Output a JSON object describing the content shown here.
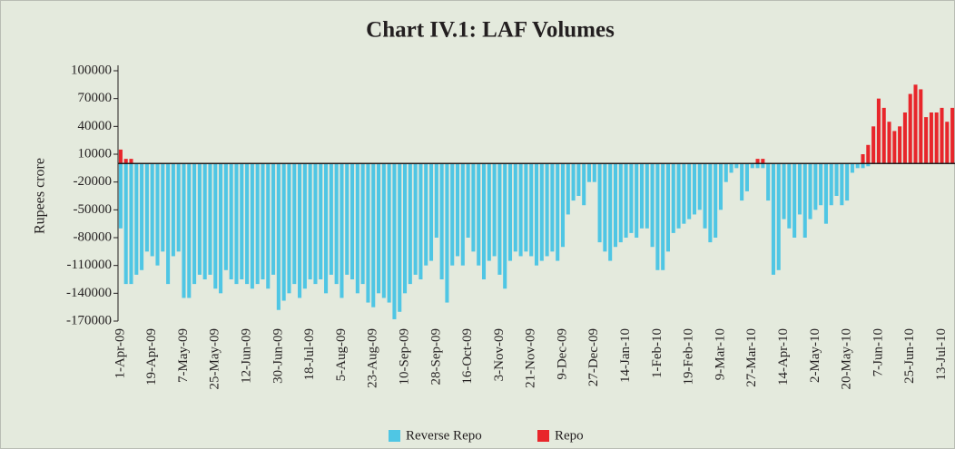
{
  "chart_data": {
    "type": "bar",
    "title": "Chart IV.1: LAF Volumes",
    "y_label": "Rupees crore",
    "categories": [
      "1-Apr-09",
      null,
      null,
      null,
      null,
      null,
      "19-Apr-09",
      null,
      null,
      null,
      null,
      null,
      "7-May-09",
      null,
      null,
      null,
      null,
      null,
      "25-May-09",
      null,
      null,
      null,
      null,
      null,
      "12-Jun-09",
      null,
      null,
      null,
      null,
      null,
      "30-Jun-09",
      null,
      null,
      null,
      null,
      null,
      "18-Jul-09",
      null,
      null,
      null,
      null,
      null,
      "5-Aug-09",
      null,
      null,
      null,
      null,
      null,
      "23-Aug-09",
      null,
      null,
      null,
      null,
      null,
      "10-Sep-09",
      null,
      null,
      null,
      null,
      null,
      "28-Sep-09",
      null,
      null,
      null,
      null,
      null,
      "16-Oct-09",
      null,
      null,
      null,
      null,
      null,
      "3-Nov-09",
      null,
      null,
      null,
      null,
      null,
      "21-Nov-09",
      null,
      null,
      null,
      null,
      null,
      "9-Dec-09",
      null,
      null,
      null,
      null,
      null,
      "27-Dec-09",
      null,
      null,
      null,
      null,
      null,
      "14-Jan-10",
      null,
      null,
      null,
      null,
      null,
      "1-Feb-10",
      null,
      null,
      null,
      null,
      null,
      "19-Feb-10",
      null,
      null,
      null,
      null,
      null,
      "9-Mar-10",
      null,
      null,
      null,
      null,
      null,
      "27-Mar-10",
      null,
      null,
      null,
      null,
      null,
      "14-Apr-10",
      null,
      null,
      null,
      null,
      null,
      "2-May-10",
      null,
      null,
      null,
      null,
      null,
      "20-May-10",
      null,
      null,
      null,
      null,
      null,
      "7-Jun-10",
      null,
      null,
      null,
      null,
      null,
      "25-Jun-10",
      null,
      null,
      null,
      null,
      null,
      "13-Jul-10",
      null,
      null
    ],
    "series": [
      {
        "name": "Reverse Repo",
        "color": "#4fc6e4",
        "values": [
          -70000,
          -130000,
          -130000,
          -120000,
          -115000,
          -95000,
          -100000,
          -110000,
          -95000,
          -130000,
          -100000,
          -95000,
          -145000,
          -145000,
          -130000,
          -120000,
          -125000,
          -120000,
          -135000,
          -140000,
          -115000,
          -125000,
          -130000,
          -125000,
          -130000,
          -135000,
          -130000,
          -125000,
          -135000,
          -120000,
          -158000,
          -148000,
          -140000,
          -130000,
          -145000,
          -135000,
          -125000,
          -130000,
          -125000,
          -140000,
          -120000,
          -130000,
          -145000,
          -120000,
          -125000,
          -140000,
          -130000,
          -150000,
          -155000,
          -140000,
          -145000,
          -150000,
          -168000,
          -160000,
          -140000,
          -130000,
          -120000,
          -125000,
          -110000,
          -105000,
          -80000,
          -125000,
          -150000,
          -110000,
          -100000,
          -110000,
          -80000,
          -95000,
          -110000,
          -125000,
          -105000,
          -100000,
          -120000,
          -135000,
          -105000,
          -95000,
          -100000,
          -95000,
          -100000,
          -110000,
          -105000,
          -100000,
          -95000,
          -105000,
          -90000,
          -55000,
          -40000,
          -35000,
          -45000,
          -20000,
          -20000,
          -85000,
          -95000,
          -105000,
          -90000,
          -85000,
          -80000,
          -75000,
          -80000,
          -70000,
          -70000,
          -90000,
          -115000,
          -115000,
          -95000,
          -75000,
          -70000,
          -65000,
          -60000,
          -55000,
          -50000,
          -70000,
          -85000,
          -80000,
          -50000,
          -20000,
          -10000,
          -5000,
          -40000,
          -30000,
          -5000,
          -5000,
          -5000,
          -40000,
          -120000,
          -115000,
          -60000,
          -70000,
          -80000,
          -55000,
          -80000,
          -60000,
          -50000,
          -45000,
          -65000,
          -45000,
          -35000,
          -45000,
          -40000,
          -10000,
          -5000,
          -5000,
          -3000,
          0,
          0,
          0,
          0,
          0,
          0,
          0,
          0,
          0,
          0,
          0,
          0,
          0,
          0,
          0,
          0
        ]
      },
      {
        "name": "Repo",
        "color": "#e8262b",
        "values": [
          15000,
          5000,
          5000,
          0,
          0,
          0,
          0,
          0,
          0,
          0,
          0,
          0,
          0,
          0,
          0,
          0,
          0,
          0,
          0,
          0,
          0,
          0,
          0,
          0,
          0,
          0,
          0,
          0,
          0,
          0,
          0,
          0,
          0,
          0,
          0,
          0,
          0,
          0,
          0,
          0,
          0,
          0,
          0,
          0,
          0,
          0,
          0,
          0,
          0,
          0,
          0,
          0,
          0,
          0,
          0,
          0,
          0,
          0,
          0,
          0,
          0,
          0,
          0,
          0,
          0,
          0,
          0,
          0,
          0,
          0,
          0,
          0,
          0,
          0,
          0,
          0,
          0,
          0,
          0,
          0,
          0,
          0,
          0,
          0,
          0,
          0,
          0,
          0,
          0,
          0,
          0,
          0,
          0,
          0,
          0,
          0,
          0,
          0,
          0,
          0,
          0,
          0,
          0,
          0,
          0,
          0,
          0,
          0,
          0,
          0,
          0,
          0,
          0,
          0,
          0,
          0,
          0,
          0,
          0,
          0,
          0,
          5000,
          5000,
          0,
          0,
          0,
          0,
          0,
          0,
          0,
          0,
          0,
          0,
          0,
          0,
          0,
          0,
          0,
          0,
          0,
          0,
          10000,
          20000,
          40000,
          70000,
          60000,
          45000,
          35000,
          40000,
          55000,
          75000,
          85000,
          80000,
          50000,
          55000,
          55000,
          60000,
          45000,
          60000
        ]
      }
    ],
    "ylim": [
      -170000,
      100000
    ],
    "yticks": [
      100000,
      70000,
      40000,
      10000,
      -20000,
      -50000,
      -80000,
      -110000,
      -140000,
      -170000
    ],
    "legend": "bottom"
  }
}
